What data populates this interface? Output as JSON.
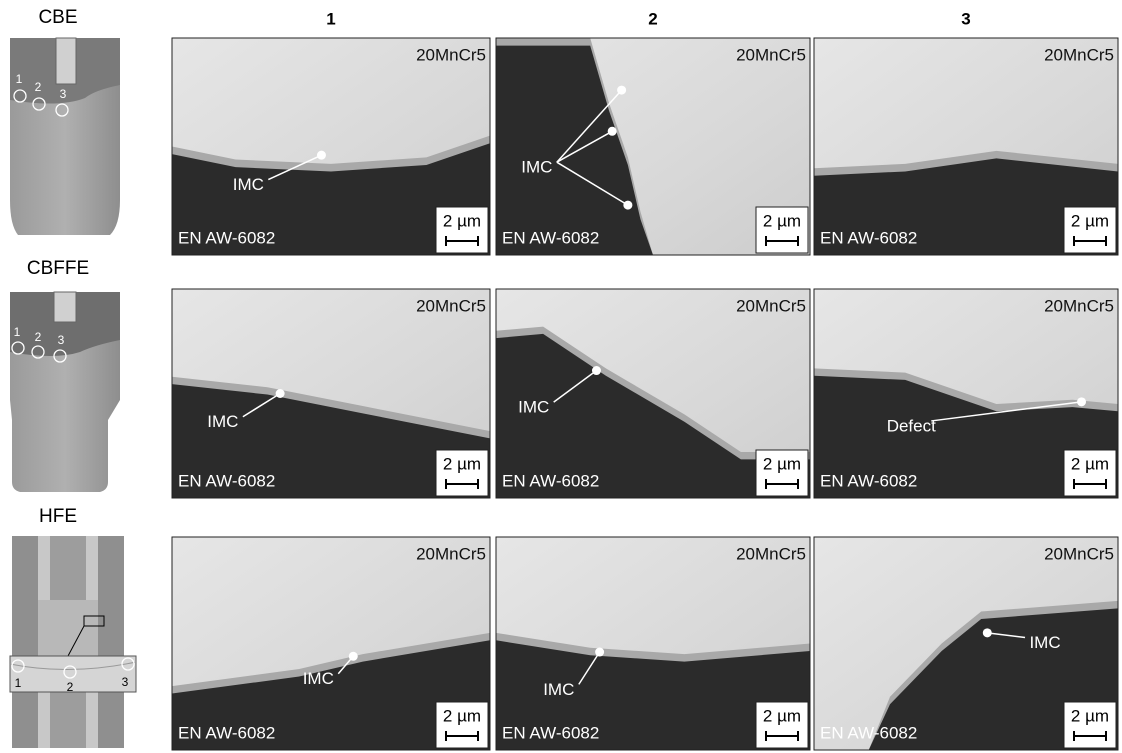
{
  "columns": [
    "1",
    "2",
    "3"
  ],
  "rows": [
    {
      "label": "CBE",
      "markers": [
        "1",
        "2",
        "3"
      ],
      "panels": [
        {
          "top": "20MnCr5",
          "bottom": "EN AW-6082",
          "scale": "2 µm",
          "annotation": "IMC"
        },
        {
          "top": "20MnCr5",
          "bottom": "EN AW-6082",
          "scale": "2 µm",
          "annotation": "IMC"
        },
        {
          "top": "20MnCr5",
          "bottom": "EN AW-6082",
          "scale": "2 µm"
        }
      ]
    },
    {
      "label": "CBFFE",
      "markers": [
        "1",
        "2",
        "3"
      ],
      "panels": [
        {
          "top": "20MnCr5",
          "bottom": "EN AW-6082",
          "scale": "2 µm",
          "annotation": "IMC"
        },
        {
          "top": "20MnCr5",
          "bottom": "EN AW-6082",
          "scale": "2 µm",
          "annotation": "IMC"
        },
        {
          "top": "20MnCr5",
          "bottom": "EN AW-6082",
          "scale": "2 µm",
          "annotation": "Defect"
        }
      ]
    },
    {
      "label": "HFE",
      "markers": [
        "1",
        "2",
        "3"
      ],
      "panels": [
        {
          "top": "20MnCr5",
          "bottom": "EN AW-6082",
          "scale": "2 µm",
          "annotation": "IMC"
        },
        {
          "top": "20MnCr5",
          "bottom": "EN AW-6082",
          "scale": "2 µm",
          "annotation": "IMC"
        },
        {
          "top": "20MnCr5",
          "bottom": "EN AW-6082",
          "scale": "2 µm",
          "annotation": "IMC"
        }
      ]
    }
  ]
}
